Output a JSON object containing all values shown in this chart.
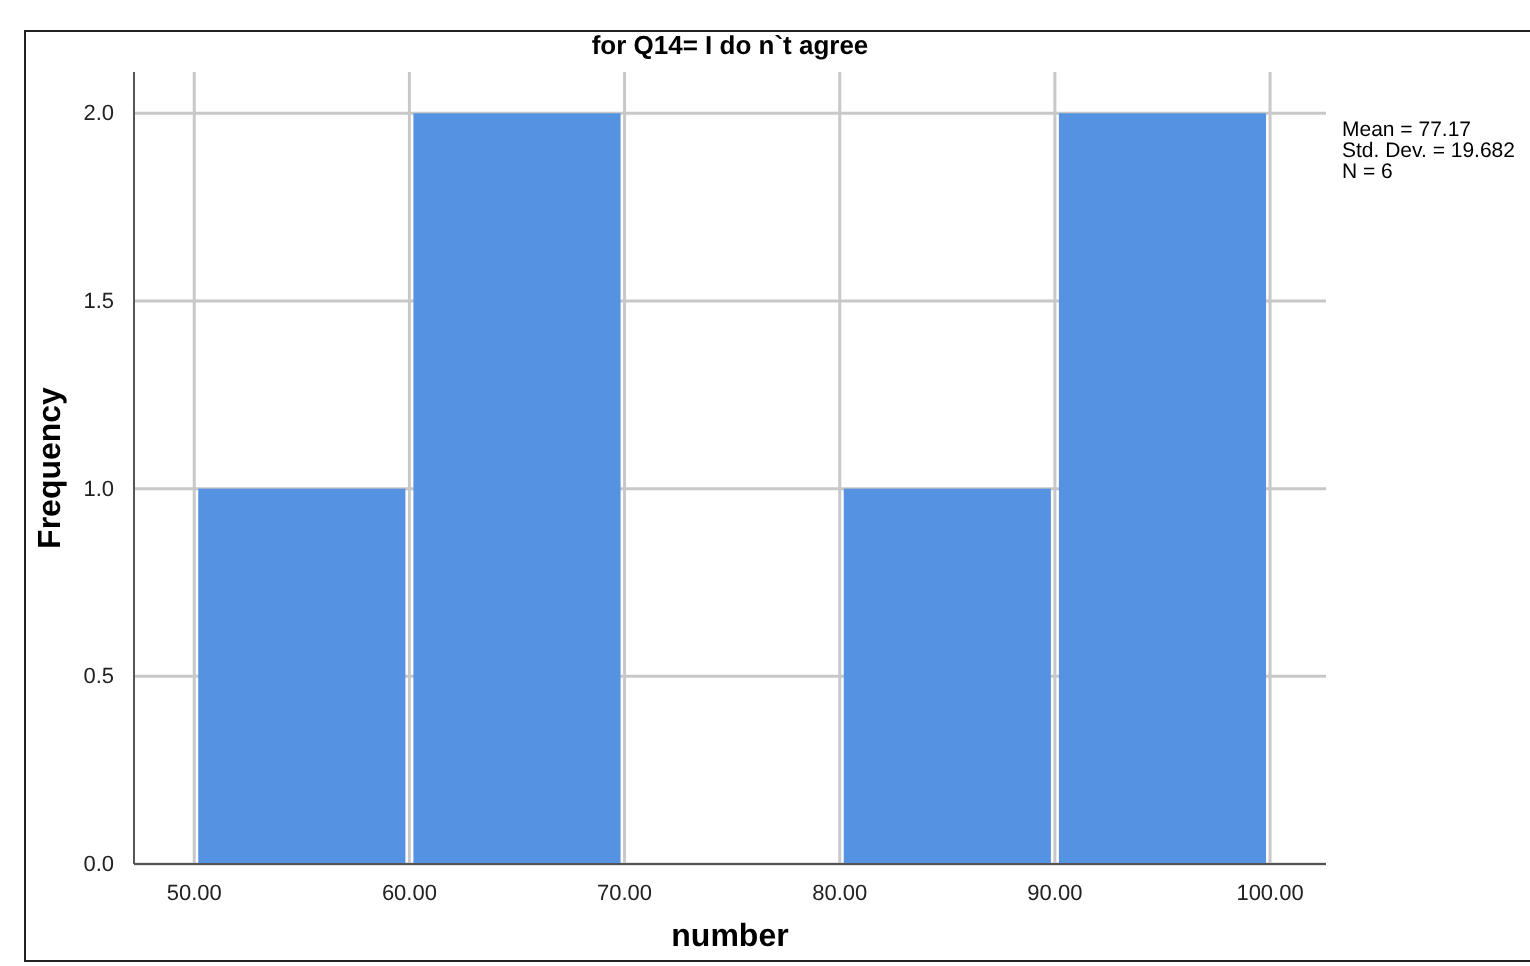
{
  "chart_data": {
    "type": "histogram",
    "title": "for Q14= I do n`t agree",
    "xlabel": "number",
    "ylabel": "Frequency",
    "bins": [
      50,
      60,
      70,
      80,
      90,
      100
    ],
    "values": [
      1,
      2,
      0,
      1,
      2
    ],
    "color": "#5592e2",
    "xlim": [
      47.2,
      102.6
    ],
    "xticks": [
      {
        "value": 50,
        "label": "50.00"
      },
      {
        "value": 60,
        "label": "60.00"
      },
      {
        "value": 70,
        "label": "70.00"
      },
      {
        "value": 80,
        "label": "80.00"
      },
      {
        "value": 90,
        "label": "90.00"
      },
      {
        "value": 100,
        "label": "100.00"
      }
    ],
    "ylim": [
      0,
      2.11
    ],
    "yticks": [
      {
        "value": 0,
        "label": "0.0"
      },
      {
        "value": 0.5,
        "label": "0.5"
      },
      {
        "value": 1,
        "label": "1.0"
      },
      {
        "value": 1.5,
        "label": "1.5"
      },
      {
        "value": 2,
        "label": "2.0"
      }
    ],
    "grid": true,
    "annotations": [
      "Mean = 77.17",
      "Std. Dev. = 19.682",
      "N = 6"
    ]
  }
}
